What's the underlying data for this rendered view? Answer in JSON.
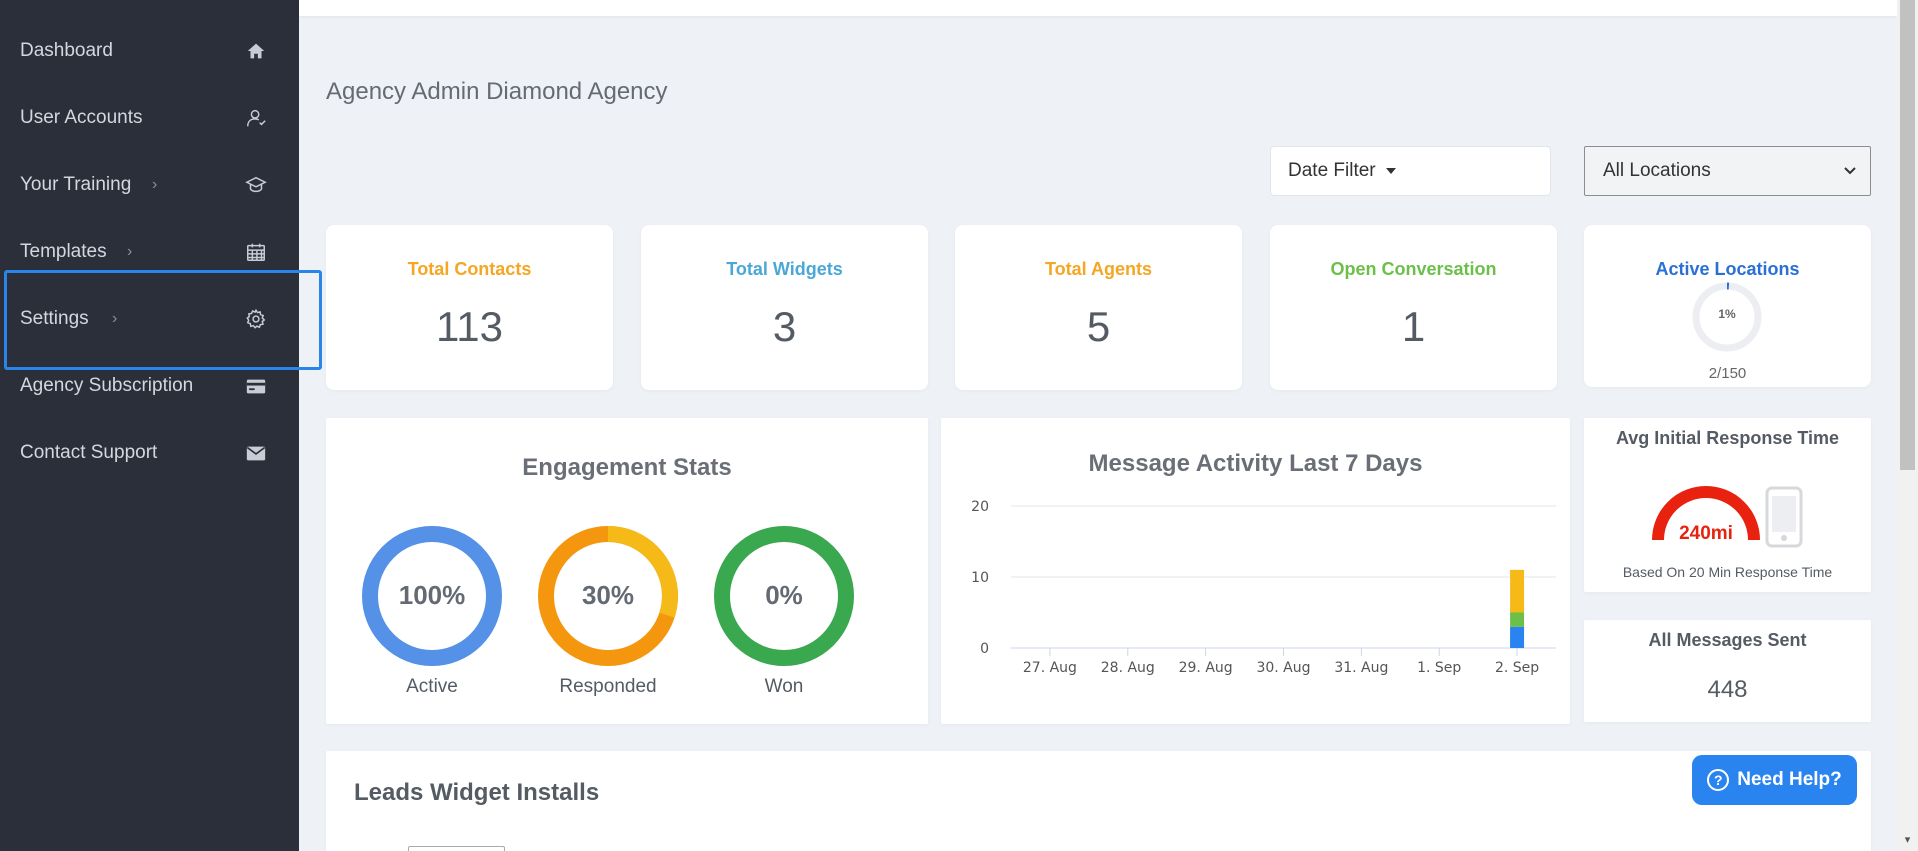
{
  "sidebar": {
    "items": [
      {
        "label": "Dashboard",
        "icon": "home-icon",
        "chevron": false
      },
      {
        "label": "User Accounts",
        "icon": "users-icon",
        "chevron": false
      },
      {
        "label": "Your Training",
        "icon": "graduation-cap-icon",
        "chevron": true
      },
      {
        "label": "Templates",
        "icon": "calendar-icon",
        "chevron": true
      },
      {
        "label": "Settings",
        "icon": "gear-icon",
        "chevron": true
      },
      {
        "label": "Agency Subscription",
        "icon": "credit-card-icon",
        "chevron": false
      },
      {
        "label": "Contact Support",
        "icon": "envelope-icon",
        "chevron": false
      }
    ]
  },
  "page": {
    "title": "Agency Admin Diamond Agency"
  },
  "filters": {
    "date_filter_label": "Date Filter",
    "location_selected": "All Locations"
  },
  "stats": [
    {
      "title": "Total Contacts",
      "value": "113",
      "color": "#f5a623"
    },
    {
      "title": "Total Widgets",
      "value": "3",
      "color": "#4aa8d8"
    },
    {
      "title": "Total Agents",
      "value": "5",
      "color": "#f5a623"
    },
    {
      "title": "Open Conversation",
      "value": "1",
      "color": "#6cc04a"
    }
  ],
  "active_locations": {
    "title": "Active Locations",
    "percent_label": "1%",
    "percent": 1,
    "count": "2/150",
    "color": "#2a6fd6"
  },
  "engagement": {
    "title": "Engagement Stats",
    "donuts": [
      {
        "label": "Active",
        "pct_label": "100%",
        "percent": 100,
        "color": "#5591e6",
        "track": "#5591e6"
      },
      {
        "label": "Responded",
        "pct_label": "30%",
        "percent": 30,
        "color": "#f5b918",
        "track": "#f5960f"
      },
      {
        "label": "Won",
        "pct_label": "0%",
        "percent": 0,
        "color": "#3aa84f",
        "track": "#3aa84f"
      }
    ]
  },
  "chart_data": {
    "type": "bar",
    "title": "Message Activity Last 7 Days",
    "categories": [
      "27. Aug",
      "28. Aug",
      "29. Aug",
      "30. Aug",
      "31. Aug",
      "1. Sep",
      "2. Sep"
    ],
    "series": [
      {
        "values": [
          0,
          0,
          0,
          0,
          0,
          0,
          3
        ],
        "color": "#2a84f0"
      },
      {
        "values": [
          0,
          0,
          0,
          0,
          0,
          0,
          2
        ],
        "color": "#6cc04a"
      },
      {
        "values": [
          0,
          0,
          0,
          0,
          0,
          0,
          6
        ],
        "color": "#f5b918"
      }
    ],
    "stacked": true,
    "ylim": [
      0,
      20
    ],
    "yticks": [
      0,
      10,
      20
    ],
    "grid": true
  },
  "response_time": {
    "title": "Avg Initial Response Time",
    "value": "240mi",
    "caption": "Based On 20 Min Response Time",
    "gauge_color": "#e8220f"
  },
  "messages_sent": {
    "title": "All Messages Sent",
    "value": "448"
  },
  "leads": {
    "title": "Leads Widget Installs"
  },
  "help": {
    "label": "Need Help?",
    "q": "?"
  },
  "colors": {
    "sidebar_bg": "#2b2f3a",
    "page_bg": "#eef1f6",
    "highlight": "#2a85e8"
  }
}
